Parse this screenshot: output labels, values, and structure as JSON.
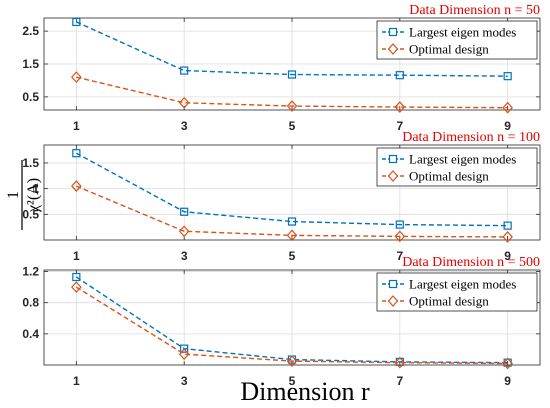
{
  "figure": {
    "xlabel": "Dimension r",
    "ylabel_numerator": "1",
    "ylabel_denominator": "χ²(A)"
  },
  "chart_data": [
    {
      "type": "line",
      "title": "Data Dimension n = 50",
      "x": [
        1,
        3,
        5,
        7,
        9
      ],
      "xticks": [
        "1",
        "3",
        "5",
        "7",
        "9"
      ],
      "xlim": [
        0.4,
        9.6
      ],
      "ylim": [
        0.1,
        2.9
      ],
      "yticks": [
        0.5,
        1.5,
        2.5
      ],
      "ytick_labels": [
        "0.5",
        "1.5",
        "2.5"
      ],
      "grid": true,
      "legend": "top-right",
      "series": [
        {
          "name": "Largest eigen modes",
          "color": "#0072bd",
          "marker": "square",
          "values": [
            2.78,
            1.3,
            1.18,
            1.16,
            1.13
          ]
        },
        {
          "name": "Optimal design",
          "color": "#d95319",
          "marker": "diamond",
          "values": [
            1.1,
            0.32,
            0.22,
            0.19,
            0.17
          ]
        }
      ]
    },
    {
      "type": "line",
      "title": "Data Dimension n = 100",
      "x": [
        1,
        3,
        5,
        7,
        9
      ],
      "xticks": [
        "1",
        "3",
        "5",
        "7",
        "9"
      ],
      "xlim": [
        0.4,
        9.6
      ],
      "ylim": [
        0.0,
        1.85
      ],
      "yticks": [
        0.5,
        1.0,
        1.5
      ],
      "ytick_labels": [
        "0.5",
        "1",
        "1.5"
      ],
      "grid": true,
      "legend": "top-right",
      "series": [
        {
          "name": "Largest eigen modes",
          "color": "#0072bd",
          "marker": "square",
          "values": [
            1.69,
            0.55,
            0.36,
            0.3,
            0.28
          ]
        },
        {
          "name": "Optimal design",
          "color": "#d95319",
          "marker": "diamond",
          "values": [
            1.05,
            0.17,
            0.09,
            0.07,
            0.06
          ]
        }
      ]
    },
    {
      "type": "line",
      "title": "Data Dimension n = 500",
      "x": [
        1,
        3,
        5,
        7,
        9
      ],
      "xticks": [
        "1",
        "3",
        "5",
        "7",
        "9"
      ],
      "xlim": [
        0.4,
        9.6
      ],
      "ylim": [
        0.0,
        1.22
      ],
      "yticks": [
        0.4,
        0.8,
        1.2
      ],
      "ytick_labels": [
        "0.4",
        "0.8",
        "1.2"
      ],
      "grid": true,
      "legend": "top-right",
      "series": [
        {
          "name": "Largest eigen modes",
          "color": "#0072bd",
          "marker": "square",
          "values": [
            1.13,
            0.21,
            0.07,
            0.04,
            0.03
          ]
        },
        {
          "name": "Optimal design",
          "color": "#d95319",
          "marker": "diamond",
          "values": [
            1.0,
            0.14,
            0.05,
            0.03,
            0.02
          ]
        }
      ]
    }
  ]
}
